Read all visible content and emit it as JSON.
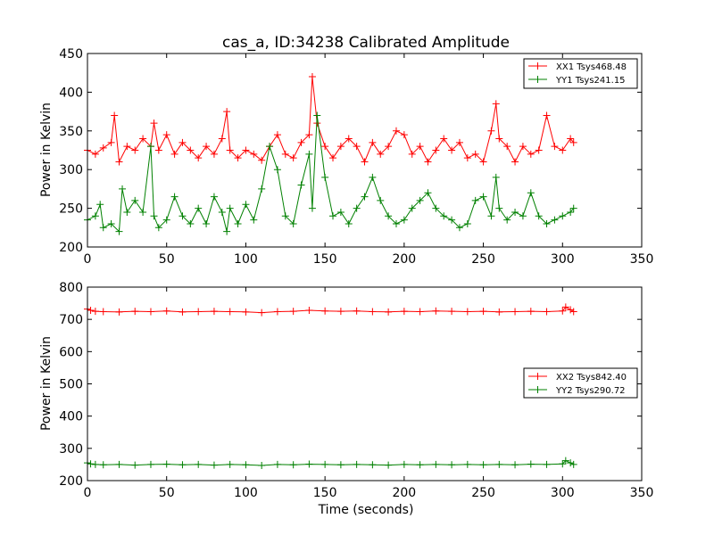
{
  "figure": {
    "title": "cas_a, ID:34238 Calibrated Amplitude"
  },
  "colors": {
    "xx": "#ff0000",
    "yy": "#008000"
  },
  "chart_data": [
    {
      "type": "line",
      "title": "cas_a, ID:34238 Calibrated Amplitude",
      "xlabel": "",
      "ylabel": "Power in Kelvin",
      "xlim": [
        0,
        350
      ],
      "ylim": [
        200,
        450
      ],
      "xticks": [
        0,
        50,
        100,
        150,
        200,
        250,
        300,
        350
      ],
      "yticks": [
        200,
        250,
        300,
        350,
        400,
        450
      ],
      "grid": false,
      "legend": "top-right",
      "marker": "+",
      "series": [
        {
          "name": "XX1 Tsys468.48",
          "color": "#ff0000",
          "x": [
            0,
            5,
            10,
            15,
            17,
            20,
            25,
            30,
            35,
            40,
            42,
            45,
            50,
            55,
            60,
            65,
            70,
            75,
            80,
            85,
            88,
            90,
            95,
            100,
            105,
            110,
            115,
            120,
            125,
            130,
            135,
            140,
            142,
            145,
            150,
            155,
            160,
            165,
            170,
            175,
            180,
            185,
            190,
            195,
            200,
            205,
            210,
            215,
            220,
            225,
            230,
            235,
            240,
            245,
            250,
            255,
            258,
            260,
            265,
            270,
            275,
            280,
            285,
            290,
            295,
            300,
            305,
            307
          ],
          "y": [
            325,
            320,
            328,
            335,
            370,
            310,
            330,
            325,
            340,
            330,
            360,
            325,
            345,
            320,
            335,
            325,
            315,
            330,
            320,
            340,
            375,
            325,
            315,
            325,
            320,
            312,
            330,
            345,
            320,
            315,
            335,
            345,
            420,
            360,
            330,
            315,
            330,
            340,
            330,
            310,
            335,
            320,
            330,
            350,
            345,
            320,
            330,
            310,
            325,
            340,
            325,
            335,
            315,
            320,
            310,
            350,
            385,
            340,
            330,
            310,
            330,
            320,
            325,
            370,
            330,
            325,
            340,
            335
          ]
        },
        {
          "name": "YY1 Tsys241.15",
          "color": "#008000",
          "x": [
            0,
            5,
            8,
            10,
            15,
            20,
            22,
            25,
            30,
            35,
            40,
            42,
            45,
            50,
            55,
            60,
            65,
            70,
            75,
            80,
            85,
            88,
            90,
            95,
            100,
            105,
            110,
            115,
            120,
            125,
            130,
            135,
            140,
            142,
            145,
            150,
            155,
            160,
            165,
            170,
            175,
            180,
            185,
            190,
            195,
            200,
            205,
            210,
            215,
            220,
            225,
            230,
            235,
            240,
            245,
            250,
            255,
            258,
            260,
            265,
            270,
            275,
            280,
            285,
            290,
            295,
            300,
            305,
            307
          ],
          "y": [
            235,
            240,
            255,
            225,
            230,
            220,
            275,
            245,
            260,
            245,
            330,
            240,
            225,
            235,
            265,
            240,
            230,
            250,
            230,
            265,
            245,
            220,
            250,
            230,
            255,
            235,
            275,
            330,
            300,
            240,
            230,
            280,
            320,
            250,
            370,
            290,
            240,
            245,
            230,
            250,
            265,
            290,
            260,
            240,
            230,
            235,
            250,
            260,
            270,
            250,
            240,
            235,
            225,
            230,
            260,
            265,
            240,
            290,
            250,
            235,
            245,
            240,
            270,
            240,
            230,
            235,
            240,
            245,
            250
          ]
        }
      ]
    },
    {
      "type": "line",
      "title": "",
      "xlabel": "Time (seconds)",
      "ylabel": "Power in Kelvin",
      "xlim": [
        0,
        350
      ],
      "ylim": [
        200,
        800
      ],
      "xticks": [
        0,
        50,
        100,
        150,
        200,
        250,
        300,
        350
      ],
      "yticks": [
        200,
        300,
        400,
        500,
        600,
        700,
        800
      ],
      "grid": false,
      "legend": "center-right",
      "marker": "+",
      "series": [
        {
          "name": "XX2 Tsys842.40",
          "color": "#ff0000",
          "x": [
            0,
            2,
            5,
            10,
            20,
            30,
            40,
            50,
            60,
            70,
            80,
            90,
            100,
            110,
            120,
            130,
            140,
            150,
            160,
            170,
            180,
            190,
            200,
            210,
            220,
            230,
            240,
            250,
            260,
            270,
            280,
            290,
            300,
            302,
            305,
            307
          ],
          "y": [
            732,
            728,
            725,
            724,
            723,
            725,
            724,
            726,
            723,
            724,
            725,
            724,
            723,
            721,
            724,
            725,
            728,
            726,
            725,
            726,
            724,
            723,
            725,
            724,
            726,
            725,
            724,
            725,
            723,
            724,
            725,
            724,
            726,
            738,
            730,
            724
          ]
        },
        {
          "name": "YY2 Tsys290.72",
          "color": "#008000",
          "x": [
            0,
            2,
            5,
            10,
            20,
            30,
            40,
            50,
            60,
            70,
            80,
            90,
            100,
            110,
            120,
            130,
            140,
            150,
            160,
            170,
            180,
            190,
            200,
            210,
            220,
            230,
            240,
            250,
            260,
            270,
            280,
            290,
            300,
            302,
            305,
            307
          ],
          "y": [
            255,
            252,
            250,
            249,
            250,
            248,
            250,
            251,
            249,
            250,
            248,
            250,
            249,
            247,
            250,
            249,
            251,
            250,
            249,
            250,
            249,
            248,
            250,
            249,
            250,
            249,
            250,
            249,
            250,
            249,
            251,
            250,
            252,
            262,
            255,
            250
          ]
        }
      ]
    }
  ]
}
